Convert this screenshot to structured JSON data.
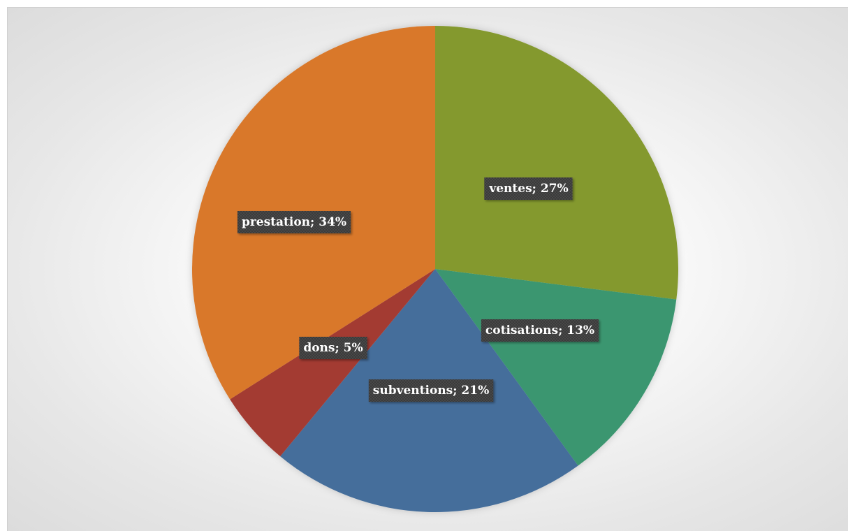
{
  "chart_data": {
    "type": "pie",
    "slices": [
      {
        "category": "ventes",
        "value": 27,
        "label": "ventes; 27%",
        "color": "#84992F"
      },
      {
        "category": "cotisations",
        "value": 13,
        "label": "cotisations; 13%",
        "color": "#3A9670"
      },
      {
        "category": "subventions",
        "value": 21,
        "label": "subventions; 21%",
        "color": "#456E9B"
      },
      {
        "category": "dons",
        "value": 5,
        "label": "dons; 5%",
        "color": "#A33B33"
      },
      {
        "category": "prestation",
        "value": 34,
        "label": "prestation; 34%",
        "color": "#D97829"
      }
    ],
    "title": "",
    "legend": "none",
    "data_labels": "category; percent"
  }
}
